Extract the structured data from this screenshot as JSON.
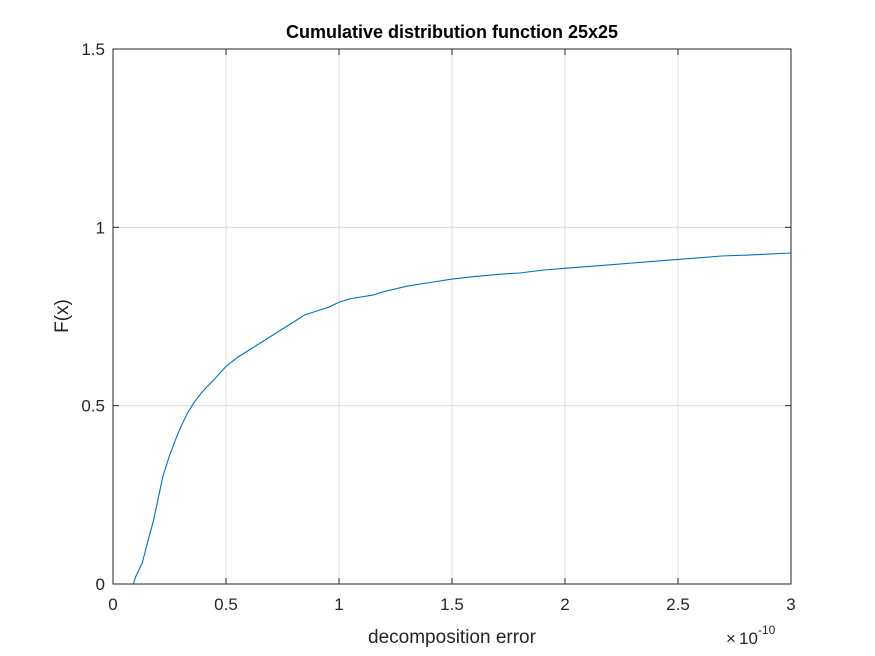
{
  "chart_data": {
    "type": "line",
    "title": "Cumulative distribution function 25x25",
    "xlabel": "decomposition error",
    "ylabel": "F(x)",
    "x_multiplier": {
      "times": "×",
      "base": "10",
      "exponent": "-10"
    },
    "xlim": [
      0,
      3
    ],
    "ylim": [
      0,
      1.5
    ],
    "xticks": [
      0,
      0.5,
      1,
      1.5,
      2,
      2.5,
      3
    ],
    "xtick_labels": [
      "0",
      "0.5",
      "1",
      "1.5",
      "2",
      "2.5",
      "3"
    ],
    "yticks": [
      0,
      0.5,
      1,
      1.5
    ],
    "ytick_labels": [
      "0",
      "0.5",
      "1",
      "1.5"
    ],
    "grid": true,
    "line_color": "#0072BD",
    "series": [
      {
        "x": [
          0.09,
          0.1,
          0.13,
          0.15,
          0.18,
          0.2,
          0.22,
          0.25,
          0.28,
          0.3,
          0.33,
          0.36,
          0.39,
          0.42,
          0.45,
          0.5,
          0.55,
          0.6,
          0.65,
          0.7,
          0.75,
          0.8,
          0.85,
          0.9,
          0.95,
          1.0,
          1.05,
          1.1,
          1.15,
          1.2,
          1.3,
          1.4,
          1.5,
          1.6,
          1.7,
          1.8,
          1.9,
          2.0,
          2.1,
          2.2,
          2.3,
          2.4,
          2.5,
          2.6,
          2.7,
          2.8,
          2.9,
          3.0
        ],
        "y": [
          0.0,
          0.02,
          0.06,
          0.11,
          0.18,
          0.24,
          0.3,
          0.36,
          0.41,
          0.44,
          0.48,
          0.51,
          0.535,
          0.555,
          0.575,
          0.61,
          0.635,
          0.655,
          0.675,
          0.695,
          0.715,
          0.735,
          0.755,
          0.765,
          0.775,
          0.79,
          0.8,
          0.805,
          0.81,
          0.82,
          0.835,
          0.845,
          0.855,
          0.862,
          0.868,
          0.872,
          0.88,
          0.885,
          0.89,
          0.895,
          0.9,
          0.905,
          0.91,
          0.915,
          0.92,
          0.922,
          0.925,
          0.928
        ]
      }
    ]
  }
}
